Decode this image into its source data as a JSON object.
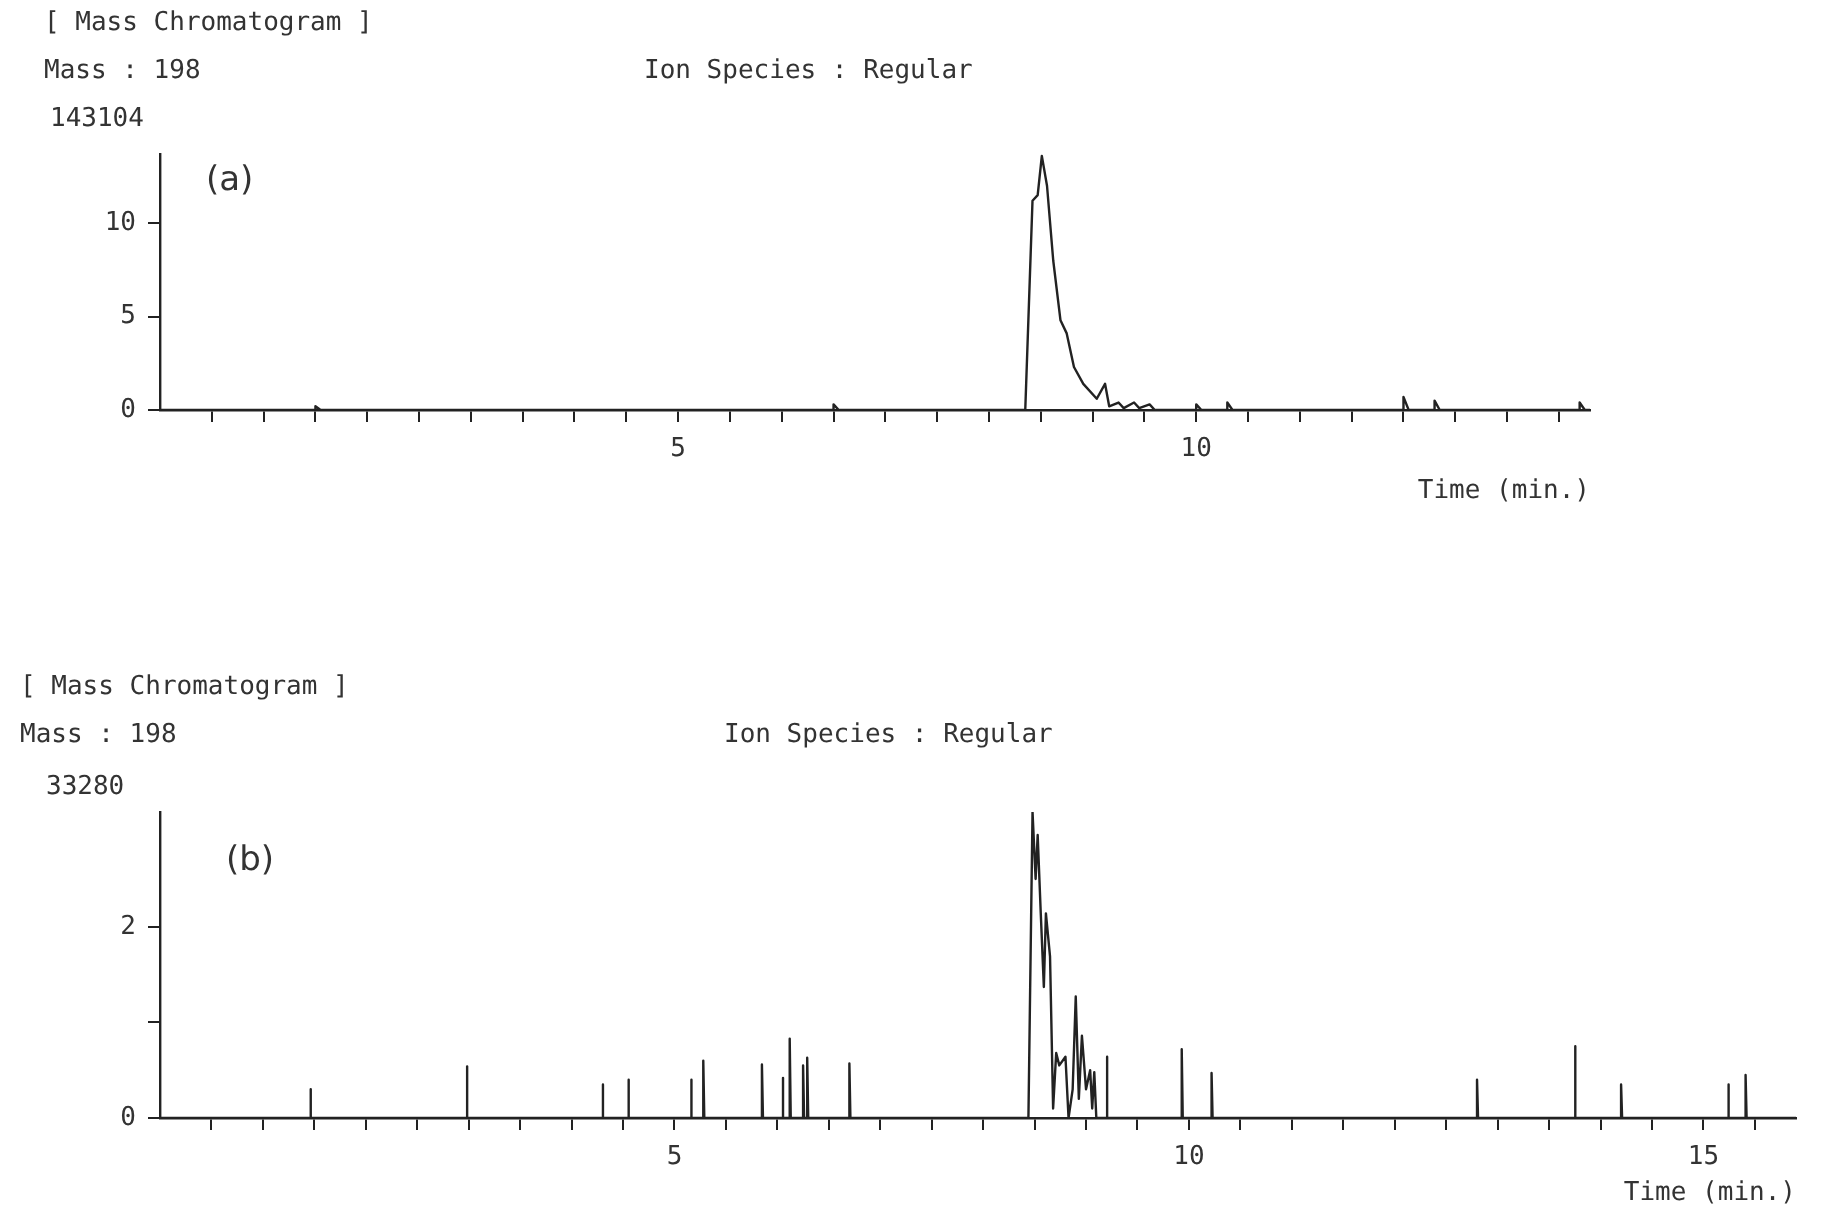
{
  "chart_data": [
    {
      "type": "line",
      "title": "[ Mass Chromatogram ]",
      "subtitle": "Mass : 198",
      "ylabel": "143104",
      "xlabel": "Time (min.)",
      "annotations": [
        "Ion Species : Regular",
        "(a)"
      ],
      "xlim": [
        0,
        13.8
      ],
      "ylim": [
        0,
        13.7
      ],
      "yticks": [
        0,
        5,
        10
      ],
      "xticks": [
        {
          "value": 0.5,
          "label": null
        },
        {
          "value": 1,
          "label": null
        },
        {
          "value": 1.5,
          "label": null
        },
        {
          "value": 2,
          "label": null
        },
        {
          "value": 2.5,
          "label": null
        },
        {
          "value": 3,
          "label": null
        },
        {
          "value": 3.5,
          "label": null
        },
        {
          "value": 4,
          "label": null
        },
        {
          "value": 4.5,
          "label": null
        },
        5,
        {
          "value": 5.5,
          "label": null
        },
        {
          "value": 6,
          "label": null
        },
        {
          "value": 6.5,
          "label": null
        },
        {
          "value": 7,
          "label": null
        },
        {
          "value": 7.5,
          "label": null
        },
        {
          "value": 8,
          "label": null
        },
        {
          "value": 8.5,
          "label": null
        },
        {
          "value": 9,
          "label": null
        },
        {
          "value": 9.5,
          "label": null
        },
        10,
        {
          "value": 10.5,
          "label": null
        },
        {
          "value": 11,
          "label": null
        },
        {
          "value": 11.5,
          "label": null
        },
        {
          "value": 12,
          "label": null
        },
        {
          "value": 12.5,
          "label": null
        },
        {
          "value": 13,
          "label": null
        },
        {
          "value": 13.5,
          "label": null
        }
      ],
      "series": [
        {
          "color": "#222222",
          "x": [
            0,
            1.5,
            1.5,
            1.55,
            6.5,
            6.5,
            6.55,
            8.35,
            8.42,
            8.47,
            8.51,
            8.56,
            8.62,
            8.69,
            8.75,
            8.82,
            8.91,
            9.04,
            9.12,
            9.16,
            9.25,
            9.3,
            9.4,
            9.45,
            9.55,
            9.6,
            10.0,
            10.0,
            10.05,
            10.3,
            10.3,
            10.35,
            12.0,
            12.0,
            12.05,
            12.3,
            12.3,
            12.35,
            13.7,
            13.7,
            13.75,
            13.8
          ],
          "values": [
            0,
            0,
            0.2,
            0,
            0,
            0.3,
            0,
            0,
            11.2,
            11.5,
            13.6,
            12.0,
            8.0,
            4.8,
            4.1,
            2.3,
            1.4,
            0.6,
            1.4,
            0.2,
            0.4,
            0.1,
            0.4,
            0.1,
            0.3,
            0,
            0,
            0.3,
            0,
            0,
            0.4,
            0,
            0,
            0.7,
            0,
            0,
            0.5,
            0,
            0,
            0.4,
            0,
            0
          ]
        }
      ]
    },
    {
      "type": "line",
      "title": "[ Mass Chromatogram ]",
      "subtitle": "Mass : 198",
      "ylabel": "33280",
      "xlabel": "Time (min.)",
      "annotations": [
        "Ion Species : Regular",
        "(b)"
      ],
      "xlim": [
        0,
        15.9
      ],
      "ylim": [
        0,
        3.2
      ],
      "yticks": [
        0,
        {
          "value": 1,
          "label": null
        },
        2
      ],
      "xticks": [
        {
          "value": 0.5,
          "label": null
        },
        {
          "value": 1,
          "label": null
        },
        {
          "value": 1.5,
          "label": null
        },
        {
          "value": 2,
          "label": null
        },
        {
          "value": 2.5,
          "label": null
        },
        {
          "value": 3,
          "label": null
        },
        {
          "value": 3.5,
          "label": null
        },
        {
          "value": 4,
          "label": null
        },
        {
          "value": 4.5,
          "label": null
        },
        5,
        {
          "value": 5.5,
          "label": null
        },
        {
          "value": 6,
          "label": null
        },
        {
          "value": 6.5,
          "label": null
        },
        {
          "value": 7,
          "label": null
        },
        {
          "value": 7.5,
          "label": null
        },
        {
          "value": 8,
          "label": null
        },
        {
          "value": 8.5,
          "label": null
        },
        {
          "value": 9,
          "label": null
        },
        {
          "value": 9.5,
          "label": null
        },
        10,
        {
          "value": 10.5,
          "label": null
        },
        {
          "value": 11,
          "label": null
        },
        {
          "value": 11.5,
          "label": null
        },
        {
          "value": 12,
          "label": null
        },
        {
          "value": 12.5,
          "label": null
        },
        {
          "value": 13,
          "label": null
        },
        {
          "value": 13.5,
          "label": null
        },
        {
          "value": 14,
          "label": null
        },
        {
          "value": 14.5,
          "label": null
        },
        15,
        {
          "value": 15.5,
          "label": null
        }
      ],
      "series": [
        {
          "color": "#222222",
          "x": [
            0,
            1.46,
            1.46,
            1.47,
            2.98,
            2.98,
            2.99,
            4.3,
            4.3,
            4.31,
            4.55,
            4.55,
            4.56,
            5.16,
            5.16,
            5.17,
            5.28,
            5.28,
            5.29,
            5.85,
            5.85,
            5.86,
            6.05,
            6.05,
            6.06,
            6.12,
            6.12,
            6.13,
            6.25,
            6.25,
            6.26,
            6.29,
            6.29,
            6.3,
            6.7,
            6.7,
            6.71,
            8.44,
            8.48,
            8.51,
            8.53,
            8.56,
            8.59,
            8.61,
            8.65,
            8.68,
            8.71,
            8.74,
            8.8,
            8.83,
            8.87,
            8.9,
            8.93,
            8.96,
            9.0,
            9.04,
            9.06,
            9.08,
            9.1,
            9.2,
            9.2,
            9.21,
            9.93,
            9.93,
            9.94,
            10.22,
            10.22,
            10.23,
            12.8,
            12.8,
            12.81,
            13.75,
            13.75,
            13.76,
            14.2,
            14.2,
            14.21,
            15.24,
            15.24,
            15.25,
            15.41,
            15.41,
            15.42,
            15.9
          ],
          "values": [
            0,
            0,
            0.3,
            0,
            0,
            0.54,
            0,
            0,
            0.35,
            0,
            0,
            0.4,
            0,
            0,
            0.4,
            0,
            0,
            0.6,
            0,
            0,
            0.56,
            0,
            0,
            0.42,
            0,
            0,
            0.83,
            0,
            0,
            0.55,
            0,
            0,
            0.63,
            0,
            0,
            0.57,
            0,
            0,
            3.2,
            2.5,
            2.96,
            2.14,
            1.37,
            2.14,
            1.69,
            0.1,
            0.68,
            0.55,
            0.64,
            0,
            0.3,
            1.27,
            0.2,
            0.86,
            0.3,
            0.5,
            0.1,
            0.48,
            0,
            0,
            0.64,
            0,
            0,
            0.72,
            0,
            0,
            0.47,
            0,
            0,
            0.4,
            0,
            0,
            0.75,
            0,
            0,
            0.35,
            0,
            0,
            0.35,
            0,
            0,
            0.45,
            0,
            0
          ]
        }
      ]
    }
  ]
}
